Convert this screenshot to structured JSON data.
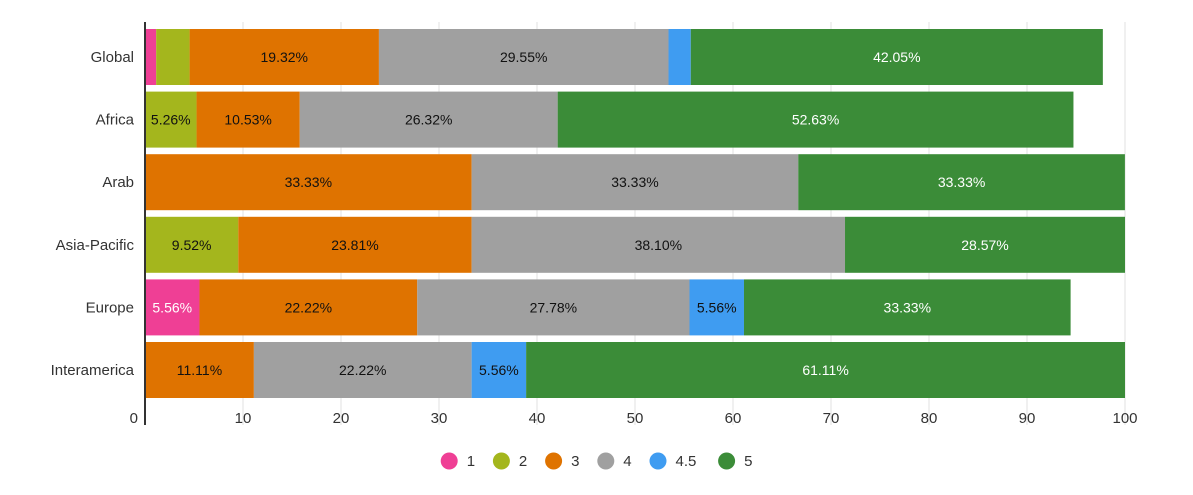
{
  "colors": {
    "1": "#ef3f95",
    "2": "#a4b61d",
    "3": "#df7300",
    "4": "#a0a0a0",
    "4.5": "#3f9cf1",
    "5": "#3b8c38",
    "grid": "#e0e0e0",
    "axis": "#333333",
    "label": "#333333"
  },
  "chart_data": {
    "type": "bar",
    "orientation": "horizontal",
    "stacked": true,
    "categories": [
      "Global",
      "Africa",
      "Arab",
      "Asia-Pacific",
      "Europe",
      "Interamerica"
    ],
    "series": [
      {
        "name": "1",
        "values": [
          1.14,
          0,
          0,
          0,
          5.56,
          0
        ],
        "labels": [
          "",
          "",
          "",
          "",
          "5.56%",
          ""
        ],
        "label_color": "#ffffff"
      },
      {
        "name": "2",
        "values": [
          3.41,
          5.26,
          0,
          9.52,
          0,
          0
        ],
        "labels": [
          "",
          "5.26%",
          "",
          "9.52%",
          "",
          ""
        ],
        "label_color": "#111111"
      },
      {
        "name": "3",
        "values": [
          19.32,
          10.53,
          33.33,
          23.81,
          22.22,
          11.11
        ],
        "labels": [
          "19.32%",
          "10.53%",
          "33.33%",
          "23.81%",
          "22.22%",
          "11.11%"
        ],
        "label_color": "#111111"
      },
      {
        "name": "4",
        "values": [
          29.55,
          26.32,
          33.33,
          38.1,
          27.78,
          22.22
        ],
        "labels": [
          "29.55%",
          "26.32%",
          "33.33%",
          "38.10%",
          "27.78%",
          "22.22%"
        ],
        "label_color": "#111111"
      },
      {
        "name": "4.5",
        "values": [
          2.27,
          0,
          0,
          0,
          5.56,
          5.56
        ],
        "labels": [
          "",
          "",
          "",
          "",
          "5.56%",
          "5.56%"
        ],
        "label_color": "#111111"
      },
      {
        "name": "5",
        "values": [
          42.05,
          52.63,
          33.33,
          28.57,
          33.33,
          61.11
        ],
        "labels": [
          "42.05%",
          "52.63%",
          "33.33%",
          "28.57%",
          "33.33%",
          "61.11%"
        ],
        "label_color": "#ffffff"
      }
    ],
    "x_ticks": [
      0,
      10,
      20,
      30,
      40,
      50,
      60,
      70,
      80,
      90,
      100
    ],
    "xlim": [
      0,
      100
    ],
    "title": "",
    "xlabel": "",
    "ylabel": "",
    "grid": true,
    "legend": {
      "position": "bottom",
      "entries": [
        "1",
        "2",
        "3",
        "4",
        "4.5",
        "5"
      ]
    }
  }
}
